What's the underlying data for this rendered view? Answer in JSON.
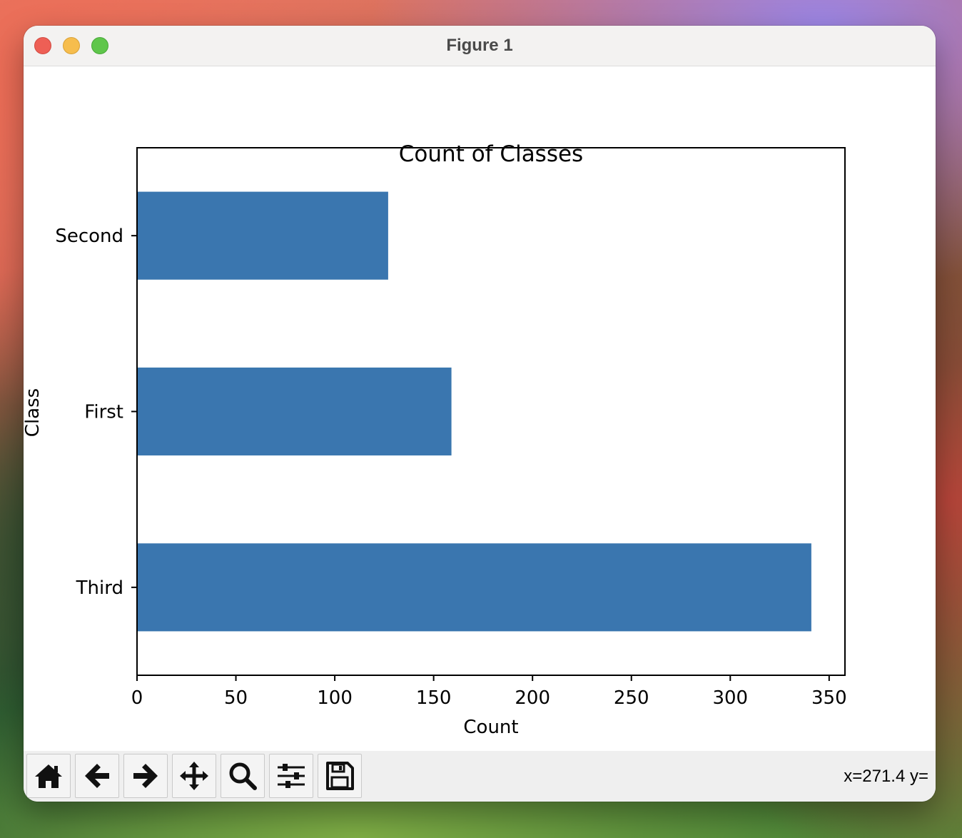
{
  "window": {
    "title": "Figure 1"
  },
  "toolbar": {
    "buttons": [
      {
        "name": "home-button",
        "icon": "home-icon"
      },
      {
        "name": "back-button",
        "icon": "arrow-left-icon"
      },
      {
        "name": "forward-button",
        "icon": "arrow-right-icon"
      },
      {
        "name": "pan-button",
        "icon": "move-icon"
      },
      {
        "name": "zoom-button",
        "icon": "magnifier-icon"
      },
      {
        "name": "configure-subplots-button",
        "icon": "sliders-icon"
      },
      {
        "name": "save-button",
        "icon": "floppy-disk-icon"
      }
    ],
    "coords": "x=271.4 y="
  },
  "chart_data": {
    "type": "bar",
    "orientation": "horizontal",
    "title": "Count of Classes",
    "xlabel": "Count",
    "ylabel": "Class",
    "categories": [
      "Third",
      "First",
      "Second"
    ],
    "values": [
      341,
      159,
      127
    ],
    "xlim": [
      0,
      358
    ],
    "xticks": [
      0,
      50,
      100,
      150,
      200,
      250,
      300,
      350
    ],
    "bar_color": "#3a76af",
    "grid": false,
    "legend": "none"
  }
}
